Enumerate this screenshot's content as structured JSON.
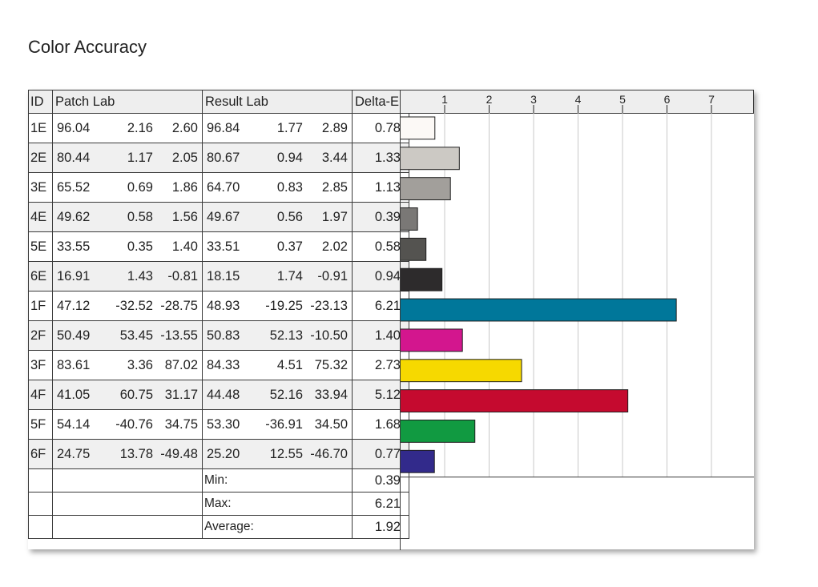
{
  "title": "Color Accuracy",
  "headers": {
    "id": "ID",
    "patch": "Patch Lab",
    "result": "Result Lab",
    "delta": "Delta-E"
  },
  "rows": [
    {
      "id": "1E",
      "patch": [
        "96.04",
        "2.16",
        "2.60"
      ],
      "result": [
        "96.84",
        "1.77",
        "2.89"
      ],
      "delta": "0.78",
      "color": "#fcf9f6"
    },
    {
      "id": "2E",
      "patch": [
        "80.44",
        "1.17",
        "2.05"
      ],
      "result": [
        "80.67",
        "0.94",
        "3.44"
      ],
      "delta": "1.33",
      "color": "#ccc9c4"
    },
    {
      "id": "3E",
      "patch": [
        "65.52",
        "0.69",
        "1.86"
      ],
      "result": [
        "64.70",
        "0.83",
        "2.85"
      ],
      "delta": "1.13",
      "color": "#a29f9b"
    },
    {
      "id": "4E",
      "patch": [
        "49.62",
        "0.58",
        "1.56"
      ],
      "result": [
        "49.67",
        "0.56",
        "1.97"
      ],
      "delta": "0.39",
      "color": "#7a7876"
    },
    {
      "id": "5E",
      "patch": [
        "33.55",
        "0.35",
        "1.40"
      ],
      "result": [
        "33.51",
        "0.37",
        "2.02"
      ],
      "delta": "0.58",
      "color": "#545350"
    },
    {
      "id": "6E",
      "patch": [
        "16.91",
        "1.43",
        "-0.81"
      ],
      "result": [
        "18.15",
        "1.74",
        "-0.91"
      ],
      "delta": "0.94",
      "color": "#2d2b2c"
    },
    {
      "id": "1F",
      "patch": [
        "47.12",
        "-32.52",
        "-28.75"
      ],
      "result": [
        "48.93",
        "-19.25",
        "-23.13"
      ],
      "delta": "6.21",
      "color": "#00779a"
    },
    {
      "id": "2F",
      "patch": [
        "50.49",
        "53.45",
        "-13.55"
      ],
      "result": [
        "50.83",
        "52.13",
        "-10.50"
      ],
      "delta": "1.40",
      "color": "#d3168e"
    },
    {
      "id": "3F",
      "patch": [
        "83.61",
        "3.36",
        "87.02"
      ],
      "result": [
        "84.33",
        "4.51",
        "75.32"
      ],
      "delta": "2.73",
      "color": "#f6d900"
    },
    {
      "id": "4F",
      "patch": [
        "41.05",
        "60.75",
        "31.17"
      ],
      "result": [
        "44.48",
        "52.16",
        "33.94"
      ],
      "delta": "5.12",
      "color": "#c50a2f"
    },
    {
      "id": "5F",
      "patch": [
        "54.14",
        "-40.76",
        "34.75"
      ],
      "result": [
        "53.30",
        "-36.91",
        "34.50"
      ],
      "delta": "1.68",
      "color": "#119a41"
    },
    {
      "id": "6F",
      "patch": [
        "24.75",
        "13.78",
        "-49.48"
      ],
      "result": [
        "25.20",
        "12.55",
        "-46.70"
      ],
      "delta": "0.77",
      "color": "#322a8b"
    }
  ],
  "summary": [
    {
      "label": "Min:",
      "value": "0.39"
    },
    {
      "label": "Max:",
      "value": "6.21"
    },
    {
      "label": "Average:",
      "value": "1.92"
    }
  ],
  "chart_data": {
    "type": "bar",
    "orientation": "horizontal",
    "categories": [
      "1E",
      "2E",
      "3E",
      "4E",
      "5E",
      "6E",
      "1F",
      "2F",
      "3F",
      "4F",
      "5F",
      "6F"
    ],
    "values": [
      0.78,
      1.33,
      1.13,
      0.39,
      0.58,
      0.94,
      6.21,
      1.4,
      2.73,
      5.12,
      1.68,
      0.77
    ],
    "xticks": [
      "1",
      "2",
      "3",
      "4",
      "5",
      "6",
      "7"
    ],
    "xlim": [
      0,
      7.8
    ],
    "grid": true,
    "bar_colors": [
      "#fcf9f6",
      "#ccc9c4",
      "#a29f9b",
      "#7a7876",
      "#545350",
      "#2d2b2c",
      "#00779a",
      "#d3168e",
      "#f6d900",
      "#c50a2f",
      "#119a41",
      "#322a8b"
    ]
  }
}
